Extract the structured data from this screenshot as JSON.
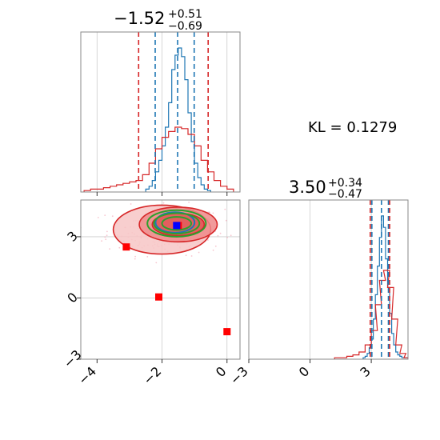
{
  "annotation": {
    "kl_text": "KL = 0.1279"
  },
  "colors": {
    "blue": "#1f77b4",
    "red": "#d62728",
    "green": "#2ca02c",
    "marker_red": "#ff0000",
    "marker_blue": "#0000ff",
    "grid": "#cccccc",
    "frame": "#888888"
  },
  "chart_data": [
    {
      "type": "histogram",
      "panel": "top-left",
      "title": {
        "main": "−1.52",
        "sup": "+0.51",
        "sub": "−0.69"
      },
      "xlim": [
        -4.5,
        0.4
      ],
      "x_ticks": [
        -4,
        -2,
        0
      ],
      "dashed_lines": {
        "blue": [
          -2.21,
          -1.52,
          -1.01
        ],
        "red": [
          -2.72,
          -0.58
        ]
      },
      "series": [
        {
          "color": "blue",
          "bins_x": [
            -2.5,
            -2.4,
            -2.3,
            -2.2,
            -2.1,
            -2.0,
            -1.9,
            -1.8,
            -1.7,
            -1.6,
            -1.5,
            -1.4,
            -1.3,
            -1.2,
            -1.1,
            -1.0,
            -0.9,
            -0.8,
            -0.7,
            -0.6
          ],
          "density": [
            0.02,
            0.04,
            0.08,
            0.14,
            0.22,
            0.32,
            0.45,
            0.62,
            0.85,
            0.95,
            1.0,
            0.94,
            0.78,
            0.55,
            0.35,
            0.2,
            0.1,
            0.05,
            0.02,
            0.01
          ]
        },
        {
          "color": "red",
          "bins_x": [
            -4.4,
            -4.2,
            -4.0,
            -3.8,
            -3.6,
            -3.4,
            -3.2,
            -3.0,
            -2.8,
            -2.6,
            -2.4,
            -2.2,
            -2.0,
            -1.8,
            -1.6,
            -1.4,
            -1.2,
            -1.0,
            -0.8,
            -0.6,
            -0.4,
            -0.2,
            0.0
          ],
          "density": [
            0.01,
            0.02,
            0.02,
            0.03,
            0.04,
            0.05,
            0.06,
            0.07,
            0.08,
            0.12,
            0.2,
            0.3,
            0.38,
            0.42,
            0.45,
            0.44,
            0.4,
            0.32,
            0.22,
            0.14,
            0.08,
            0.04,
            0.02
          ]
        }
      ]
    },
    {
      "type": "scatter",
      "panel": "bottom-left",
      "xlim": [
        -4.5,
        0.4
      ],
      "ylim": [
        -3.0,
        4.8
      ],
      "x_ticks": [
        -4,
        -2,
        0
      ],
      "y_ticks": [
        -3,
        0,
        3
      ],
      "contours": [
        {
          "color": "red",
          "fill": true,
          "cx": -2.0,
          "cy": 3.35,
          "rx": 1.5,
          "ry": 1.2
        },
        {
          "color": "red",
          "fill": true,
          "cx": -1.5,
          "cy": 3.6,
          "rx": 1.2,
          "ry": 0.85
        },
        {
          "color": "red",
          "fill": true,
          "cx": -1.5,
          "cy": 3.6,
          "rx": 0.8,
          "ry": 0.55
        },
        {
          "color": "blue",
          "fill": false,
          "cx": -1.6,
          "cy": 3.7,
          "rx": 0.6,
          "ry": 0.5
        },
        {
          "color": "green",
          "fill": false,
          "cx": -1.55,
          "cy": 3.65,
          "rx": 0.9,
          "ry": 0.65
        },
        {
          "color": "green",
          "fill": false,
          "cx": -1.55,
          "cy": 3.65,
          "rx": 0.7,
          "ry": 0.5
        },
        {
          "color": "green",
          "fill": false,
          "cx": -1.55,
          "cy": 3.65,
          "rx": 0.45,
          "ry": 0.32
        }
      ],
      "markers": [
        {
          "color": "marker_red",
          "x": -3.1,
          "y": 2.5
        },
        {
          "color": "marker_red",
          "x": -2.1,
          "y": 0.05
        },
        {
          "color": "marker_red",
          "x": 0.0,
          "y": -1.65
        },
        {
          "color": "marker_red",
          "x": -1.5,
          "y": 3.55
        },
        {
          "color": "marker_blue",
          "x": -1.55,
          "y": 3.55
        }
      ],
      "hlines": [
        3.0,
        0.0
      ],
      "vlines": [
        -2.0,
        0.0
      ]
    },
    {
      "type": "histogram",
      "panel": "bottom-right",
      "title": {
        "main": "3.50",
        "sup": "+0.34",
        "sub": "−0.47"
      },
      "xlim": [
        -3.0,
        4.8
      ],
      "x_ticks": [
        -3,
        0,
        3
      ],
      "dashed_lines": {
        "blue": [
          3.03,
          3.5,
          3.84
        ],
        "red": [
          2.95,
          3.9
        ]
      },
      "series": [
        {
          "color": "blue",
          "bins_x": [
            2.6,
            2.7,
            2.8,
            2.9,
            3.0,
            3.1,
            3.2,
            3.3,
            3.4,
            3.5,
            3.6,
            3.7,
            3.8,
            3.9,
            4.0,
            4.1,
            4.2,
            4.3,
            4.4,
            4.5,
            4.6,
            4.7
          ],
          "density": [
            0.01,
            0.02,
            0.04,
            0.08,
            0.14,
            0.28,
            0.45,
            0.65,
            0.85,
            1.0,
            0.92,
            0.7,
            0.5,
            0.32,
            0.18,
            0.1,
            0.05,
            0.03,
            0.02,
            0.01,
            0.01,
            0.01
          ]
        },
        {
          "color": "red",
          "bins_x": [
            1.2,
            1.5,
            1.8,
            2.1,
            2.4,
            2.7,
            3.0,
            3.2,
            3.4,
            3.6,
            3.8,
            4.0,
            4.2,
            4.4,
            4.6
          ],
          "density": [
            0.01,
            0.01,
            0.02,
            0.03,
            0.05,
            0.1,
            0.2,
            0.38,
            0.55,
            0.62,
            0.5,
            0.28,
            0.1,
            0.04,
            0.01
          ]
        }
      ]
    }
  ]
}
